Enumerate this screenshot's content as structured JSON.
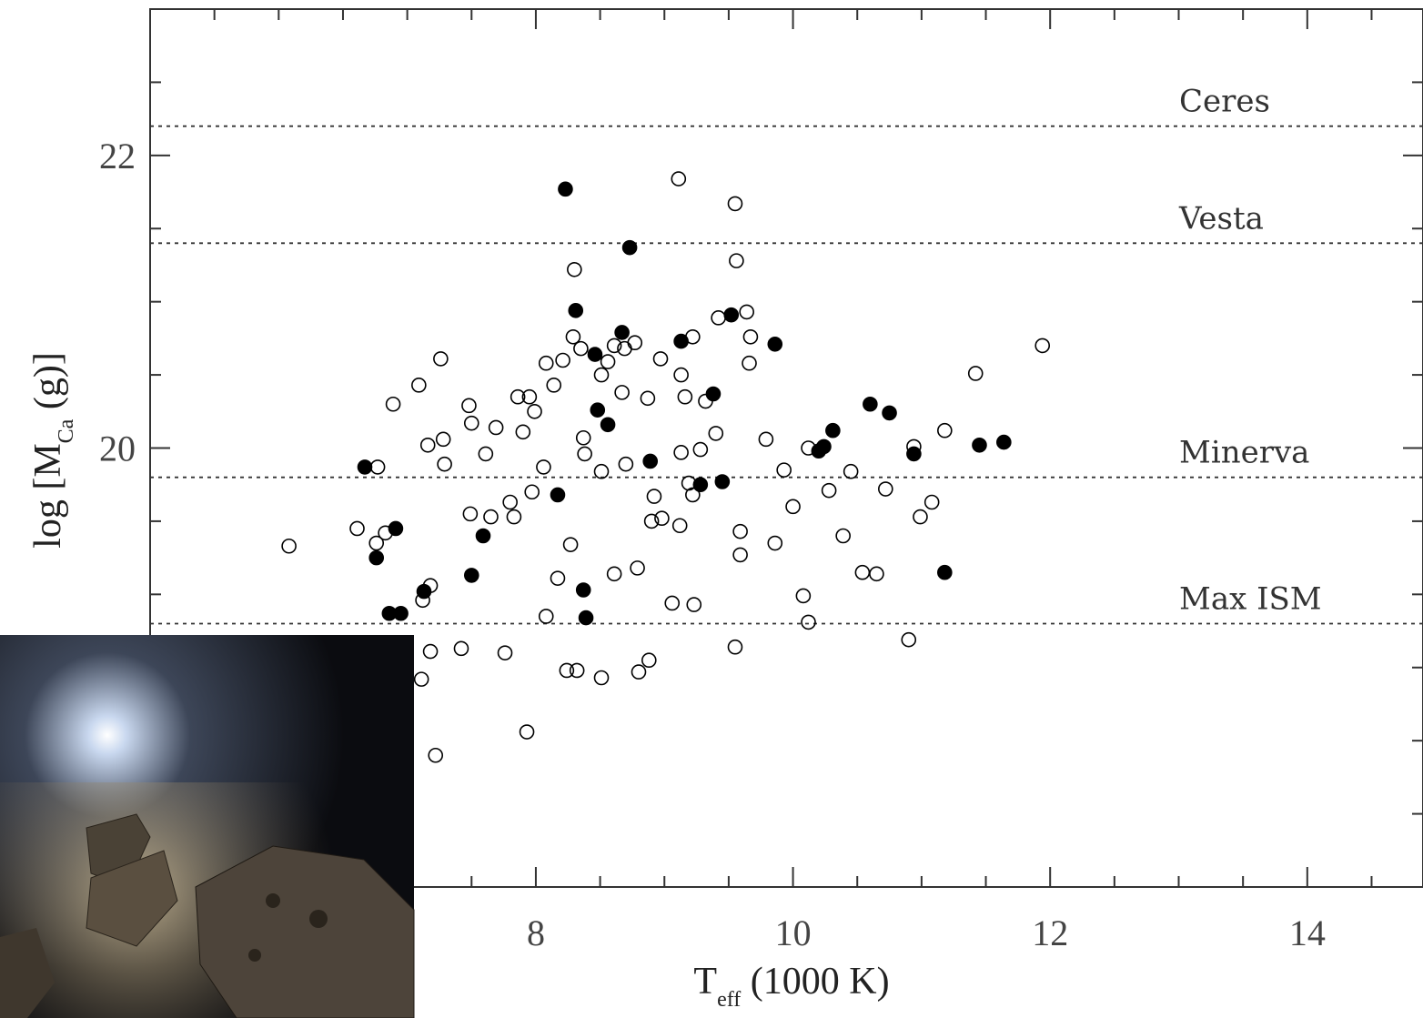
{
  "chart_data": {
    "type": "scatter",
    "x_label": [
      "T",
      "eff",
      " (1000 K)"
    ],
    "y_label": [
      "log [M",
      "Ca",
      " (g)]"
    ],
    "xlim": [
      5,
      14.9
    ],
    "ylim": [
      17,
      23
    ],
    "xticks": [
      8,
      10,
      12,
      14
    ],
    "yticks": [
      20,
      22
    ],
    "xticks_minor": [
      5.5,
      6,
      6.5,
      7,
      7.5,
      8.5,
      9,
      9.5,
      10.5,
      11,
      11.5,
      12.5,
      13,
      13.5,
      14.5
    ],
    "yticks_minor": [
      17.5,
      18,
      18.5,
      19,
      19.5,
      20.5,
      21,
      21.5,
      22.5
    ],
    "hlines": [
      {
        "label": "Ceres",
        "value": 22.2
      },
      {
        "label": "Vesta",
        "value": 21.4
      },
      {
        "label": "Minerva",
        "value": 19.8
      },
      {
        "label": "Max ISM",
        "value": 18.8
      }
    ],
    "series": [
      {
        "color": "#000000",
        "filled": true,
        "x": [
          8.23,
          8.73,
          8.31,
          8.67,
          9.13,
          9.52,
          9.86,
          8.46,
          9.38,
          8.48,
          8.56,
          10.6,
          10.75,
          10.31,
          10.24,
          10.2,
          10.94,
          11.45,
          11.64,
          8.89,
          9.45,
          9.28,
          8.17,
          6.67,
          6.91,
          6.76,
          7.59,
          7.5,
          8.37,
          7.13,
          6.86,
          6.95,
          8.39,
          11.18
        ],
        "y": [
          21.77,
          21.37,
          20.94,
          20.79,
          20.73,
          20.91,
          20.71,
          20.64,
          20.37,
          20.26,
          20.16,
          20.3,
          20.24,
          20.12,
          20.01,
          19.98,
          19.96,
          20.02,
          20.04,
          19.91,
          19.77,
          19.75,
          19.68,
          19.87,
          19.45,
          19.25,
          19.4,
          19.13,
          19.03,
          19.02,
          18.87,
          18.87,
          18.84,
          19.15
        ]
      },
      {
        "color": "#000000",
        "filled": false,
        "x": [
          9.11,
          9.55,
          9.56,
          8.3,
          9.64,
          9.42,
          11.94,
          8.29,
          8.35,
          8.77,
          8.61,
          8.69,
          9.22,
          9.67,
          9.66,
          8.97,
          8.56,
          8.21,
          8.08,
          7.26,
          9.13,
          8.51,
          11.42,
          7.09,
          8.14,
          8.67,
          9.16,
          9.32,
          8.87,
          7.86,
          7.95,
          6.89,
          7.48,
          7.99,
          7.5,
          7.69,
          7.9,
          9.4,
          8.37,
          11.18,
          9.79,
          7.28,
          7.16,
          10.12,
          10.94,
          9.28,
          9.13,
          8.38,
          7.61,
          7.29,
          6.77,
          8.06,
          8.7,
          8.51,
          9.93,
          10.45,
          9.19,
          9.22,
          10.28,
          10.72,
          7.97,
          8.92,
          11.08,
          7.8,
          10.0,
          7.65,
          7.49,
          7.83,
          10.99,
          8.9,
          8.98,
          9.12,
          6.61,
          6.83,
          9.59,
          10.39,
          6.76,
          8.27,
          9.86,
          6.08,
          9.59,
          8.79,
          8.61,
          10.54,
          10.65,
          8.17,
          7.18,
          7.12,
          10.08,
          9.06,
          9.23,
          8.08,
          10.12,
          10.9,
          7.18,
          7.42,
          7.76,
          9.55,
          8.88,
          8.8,
          8.24,
          8.32,
          8.51,
          7.11,
          7.93,
          7.22
        ],
        "y": [
          21.84,
          21.67,
          21.28,
          21.22,
          20.93,
          20.89,
          20.7,
          20.76,
          20.68,
          20.72,
          20.7,
          20.68,
          20.76,
          20.76,
          20.58,
          20.61,
          20.59,
          20.6,
          20.58,
          20.61,
          20.5,
          20.5,
          20.51,
          20.43,
          20.43,
          20.38,
          20.35,
          20.32,
          20.34,
          20.35,
          20.35,
          20.3,
          20.29,
          20.25,
          20.17,
          20.14,
          20.11,
          20.1,
          20.07,
          20.12,
          20.06,
          20.06,
          20.02,
          20.0,
          20.01,
          19.99,
          19.97,
          19.96,
          19.96,
          19.89,
          19.87,
          19.87,
          19.89,
          19.84,
          19.85,
          19.84,
          19.76,
          19.68,
          19.71,
          19.72,
          19.7,
          19.67,
          19.63,
          19.63,
          19.6,
          19.53,
          19.55,
          19.53,
          19.53,
          19.5,
          19.52,
          19.47,
          19.45,
          19.42,
          19.43,
          19.4,
          19.35,
          19.34,
          19.35,
          19.33,
          19.27,
          19.18,
          19.14,
          19.15,
          19.14,
          19.11,
          19.06,
          18.96,
          18.99,
          18.94,
          18.93,
          18.85,
          18.81,
          18.69,
          18.61,
          18.63,
          18.6,
          18.64,
          18.55,
          18.47,
          18.48,
          18.48,
          18.43,
          18.42,
          18.06,
          17.9
        ]
      }
    ]
  }
}
